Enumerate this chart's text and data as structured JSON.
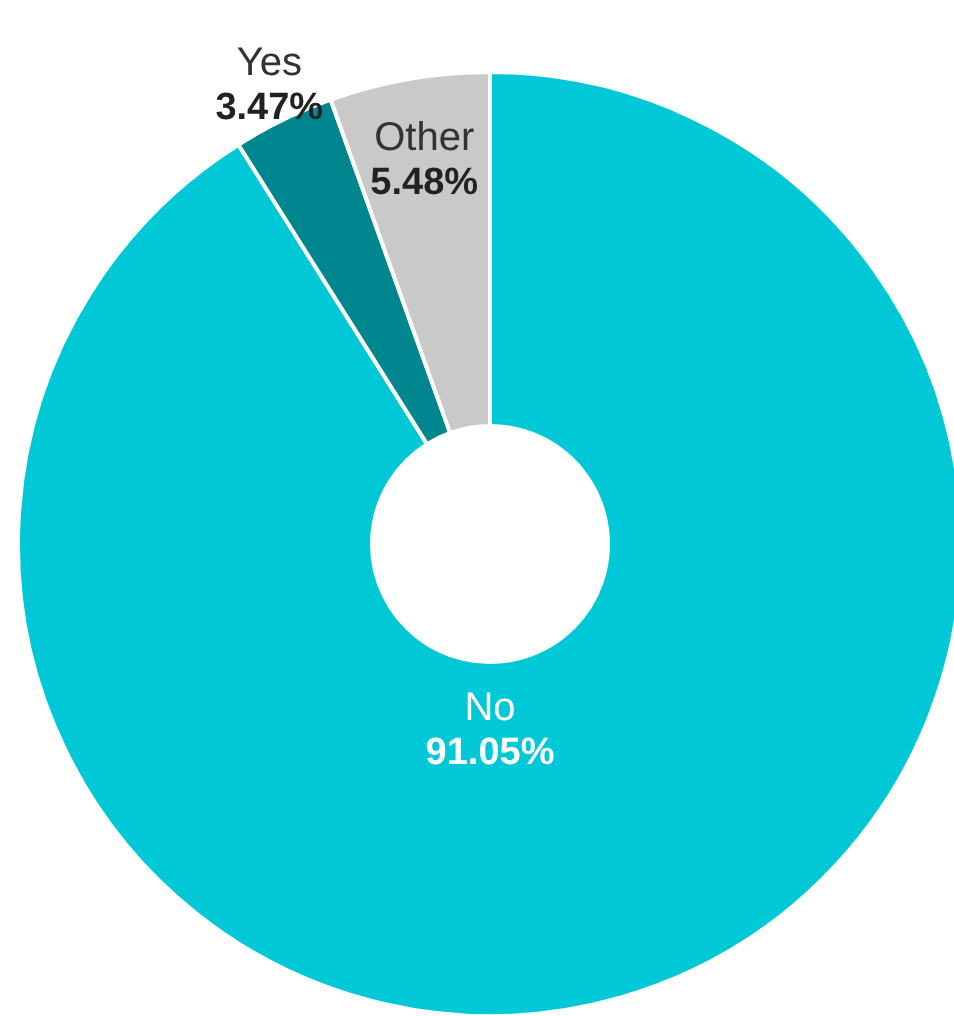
{
  "chart_data": {
    "type": "donut",
    "categories": [
      "No",
      "Yes",
      "Other"
    ],
    "values": [
      91.05,
      3.47,
      5.48
    ],
    "colors": [
      "#00c8d6",
      "#00868f",
      "#c9c9c9"
    ],
    "value_labels": [
      "91.05%",
      "3.47%",
      "5.48%"
    ]
  }
}
